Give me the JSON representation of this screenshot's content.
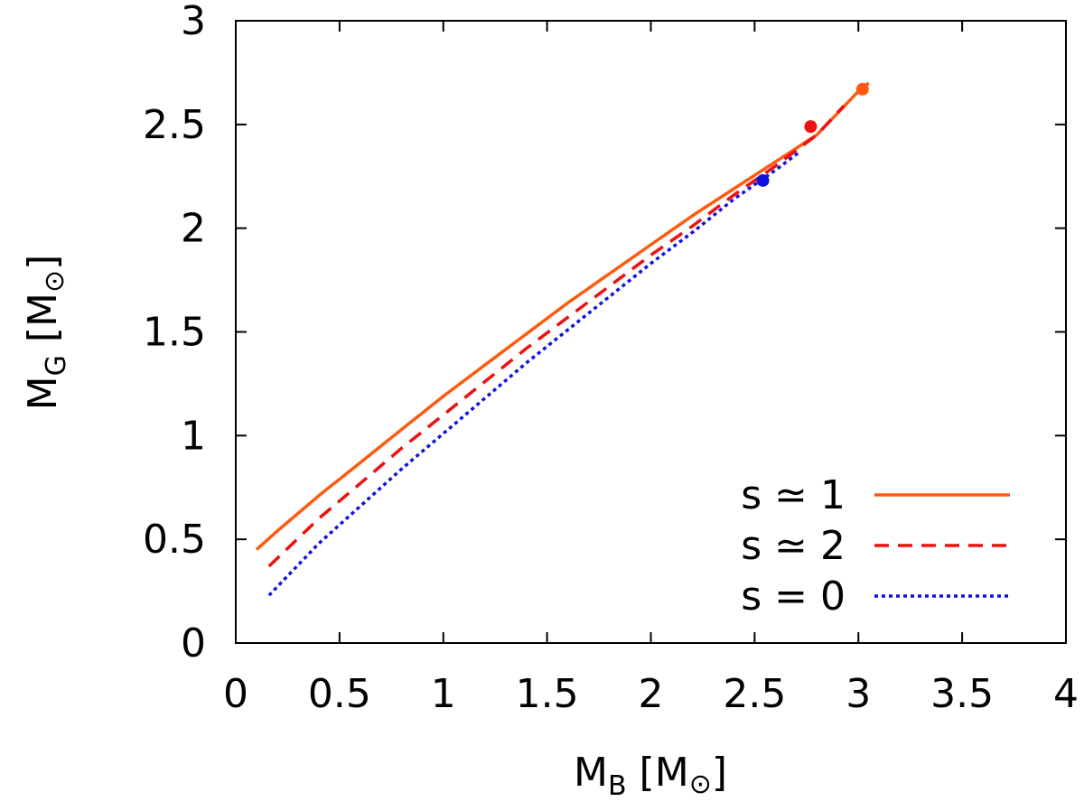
{
  "chart_data": {
    "type": "line",
    "xlim": [
      0,
      4
    ],
    "ylim": [
      0,
      3
    ],
    "xticks": [
      "0",
      "0.5",
      "1",
      "1.5",
      "2",
      "2.5",
      "3",
      "3.5",
      "4"
    ],
    "yticks": [
      "0",
      "0.5",
      "1",
      "1.5",
      "2",
      "2.5",
      "3"
    ],
    "xticks_values": [
      0,
      0.5,
      1,
      1.5,
      2,
      2.5,
      3,
      3.5,
      4
    ],
    "yticks_values": [
      0,
      0.5,
      1,
      1.5,
      2,
      2.5,
      3
    ],
    "xlabel_main": "M",
    "xlabel_sub": "B",
    "xlabel_unit": " [M",
    "xlabel_close": "]",
    "ylabel_main": "M",
    "ylabel_sub": "G",
    "ylabel_unit": " [M",
    "ylabel_close": "]",
    "sun_symbol": "⊙",
    "legend_position": "bottom-right",
    "series": [
      {
        "name": "s ≃ 1",
        "color": "#ff5a0f",
        "style": "solid",
        "x": [
          0.1,
          0.2,
          0.4,
          0.6,
          0.8,
          1.0,
          1.2,
          1.4,
          1.6,
          1.8,
          2.0,
          2.2,
          2.4,
          2.6,
          2.8,
          3.0,
          3.05
        ],
        "y": [
          0.45,
          0.54,
          0.71,
          0.87,
          1.03,
          1.19,
          1.34,
          1.49,
          1.64,
          1.78,
          1.92,
          2.06,
          2.19,
          2.32,
          2.45,
          2.66,
          2.7
        ],
        "marker": [
          3.02,
          2.67
        ]
      },
      {
        "name": "s ≃ 2",
        "color": "#ee1111",
        "style": "dashed",
        "x": [
          0.16,
          0.4,
          0.6,
          0.8,
          1.0,
          1.2,
          1.4,
          1.6,
          1.8,
          2.0,
          2.2,
          2.4,
          2.6,
          2.8,
          2.93
        ],
        "y": [
          0.37,
          0.6,
          0.77,
          0.94,
          1.1,
          1.26,
          1.42,
          1.57,
          1.72,
          1.87,
          2.01,
          2.16,
          2.3,
          2.45,
          2.59
        ],
        "marker": [
          2.77,
          2.49
        ]
      },
      {
        "name": "s = 0",
        "color": "#1111dd",
        "style": "dotted",
        "x": [
          0.16,
          0.4,
          0.6,
          0.8,
          1.0,
          1.2,
          1.4,
          1.6,
          1.8,
          2.0,
          2.2,
          2.4,
          2.6,
          2.72
        ],
        "y": [
          0.23,
          0.48,
          0.66,
          0.84,
          1.01,
          1.18,
          1.35,
          1.51,
          1.67,
          1.83,
          1.98,
          2.14,
          2.28,
          2.37
        ],
        "marker": [
          2.54,
          2.23
        ]
      }
    ]
  }
}
